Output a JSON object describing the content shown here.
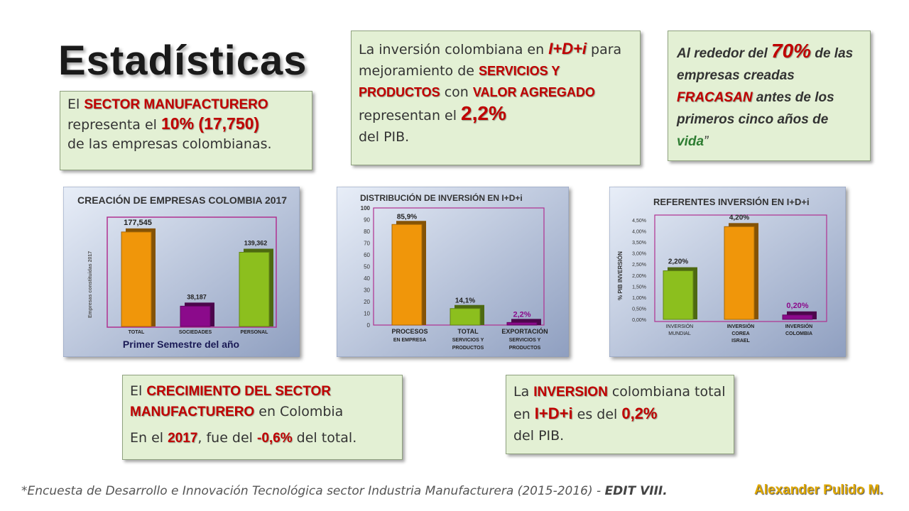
{
  "title": "Estadísticas",
  "box_manufacturero": {
    "t1": "El ",
    "h1": "SECTOR MANUFACTURERO",
    "t2": "representa el ",
    "h2": "10% (17,750)",
    "t3": "de las empresas colombianas."
  },
  "box_inversion": {
    "t1": "La inversión colombiana en ",
    "h1": "I+D+i",
    "t2": "para mejoramiento de ",
    "h2": "SERVICIOS Y PRODUCTOS",
    "t3": " con ",
    "h3": "VALOR AGREGADO",
    "t4": " representan el ",
    "h4": "2,2%",
    "t5": "del PIB."
  },
  "box_fracasan": {
    "t1": "Al rededor del ",
    "h1": "70%",
    "t2": " de las empresas creadas ",
    "h2": "FRACASAN",
    "t3": " antes de los primeros cinco años de ",
    "t4": "vida",
    "t5": "”"
  },
  "box_crecimiento": {
    "t1": "El ",
    "h1": "CRECIMIENTO DEL SECTOR MANUFACTURERO",
    "t2": " en Colombia",
    "t3": "En el ",
    "h2": "2017",
    "t4": ", fue del ",
    "h3": "-0,6%",
    "t5": " del total."
  },
  "box_pib": {
    "t1": "La ",
    "h1": "INVERSION",
    "t2": " colombiana total en ",
    "h2": "I+D+i",
    "t3": " es del ",
    "h3": "0,2%",
    "t4": "del PIB."
  },
  "footer": {
    "text": "*Encuesta de Desarrollo e Innovación Tecnológica sector Industria Manufacturera (2015-2016) - ",
    "bold": "EDIT VIII.",
    "author": "Alexander Pulido M."
  },
  "colors": {
    "orange": "#f0960a",
    "purple": "#8b0a8b",
    "green": "#8cbf1e",
    "highlight": "#c00000"
  },
  "chart_data": [
    {
      "type": "bar",
      "title": "CREACIÓN DE EMPRESAS COLOMBIA 2017",
      "xlabel": "Primer Semestre del año",
      "ylabel": "Empresas constituidas 2017",
      "categories": [
        "TOTAL",
        "SOCIEDADES",
        "PERSONAL"
      ],
      "values": [
        177545,
        38187,
        139362
      ],
      "value_labels": [
        "177,545",
        "38,187",
        "139,362"
      ],
      "colors": [
        "#f0960a",
        "#8b0a8b",
        "#8cbf1e"
      ],
      "ylim": [
        0,
        200000
      ]
    },
    {
      "type": "bar",
      "title": "DISTRIBUCIÓN DE INVERSIÓN EN I+D+i",
      "categories": [
        "PROCESOS EN EMPRESA",
        "TOTAL SERVICIOS Y PRODUCTOS",
        "EXPORTACIÓN SERVICIOS Y PRODUCTOS"
      ],
      "category_lines": [
        [
          "PROCESOS",
          "EN EMPRESA"
        ],
        [
          "TOTAL",
          "SERVICIOS Y",
          "PRODUCTOS"
        ],
        [
          "EXPORTACIÓN",
          "SERVICIOS Y",
          "PRODUCTOS"
        ]
      ],
      "values": [
        85.9,
        14.1,
        2.2
      ],
      "value_labels": [
        "85,9%",
        "14,1%",
        "2,2%"
      ],
      "colors": [
        "#f0960a",
        "#8cbf1e",
        "#8b0a8b"
      ],
      "yticks": [
        "0",
        "10",
        "20",
        "30",
        "40",
        "50",
        "60",
        "70",
        "80",
        "90",
        "100"
      ],
      "ylim": [
        0,
        100
      ]
    },
    {
      "type": "bar",
      "title": "REFERENTES INVERSIÓN EN I+D+i",
      "ylabel": "% PIB INVERSIÓN",
      "categories": [
        "INVERSIÓN MUNDIAL",
        "INVERSIÓN COREA ISRAEL",
        "INVERSIÓN COLOMBIA"
      ],
      "category_lines": [
        [
          "INVERSIÓN",
          "MUNDIAL"
        ],
        [
          "INVERSIÓN",
          "COREA",
          "ISRAEL"
        ],
        [
          "INVERSIÓN",
          "COLOMBIA"
        ]
      ],
      "values": [
        2.2,
        4.2,
        0.2
      ],
      "value_labels": [
        "2,20%",
        "4,20%",
        "0,20%"
      ],
      "colors": [
        "#8cbf1e",
        "#f0960a",
        "#8b0a8b"
      ],
      "yticks": [
        "0,00%",
        "0,50%",
        "1,00%",
        "1,50%",
        "2,00%",
        "2,50%",
        "3,00%",
        "3,50%",
        "4,00%",
        "4,50%"
      ],
      "ylim": [
        0,
        4.5
      ]
    }
  ]
}
